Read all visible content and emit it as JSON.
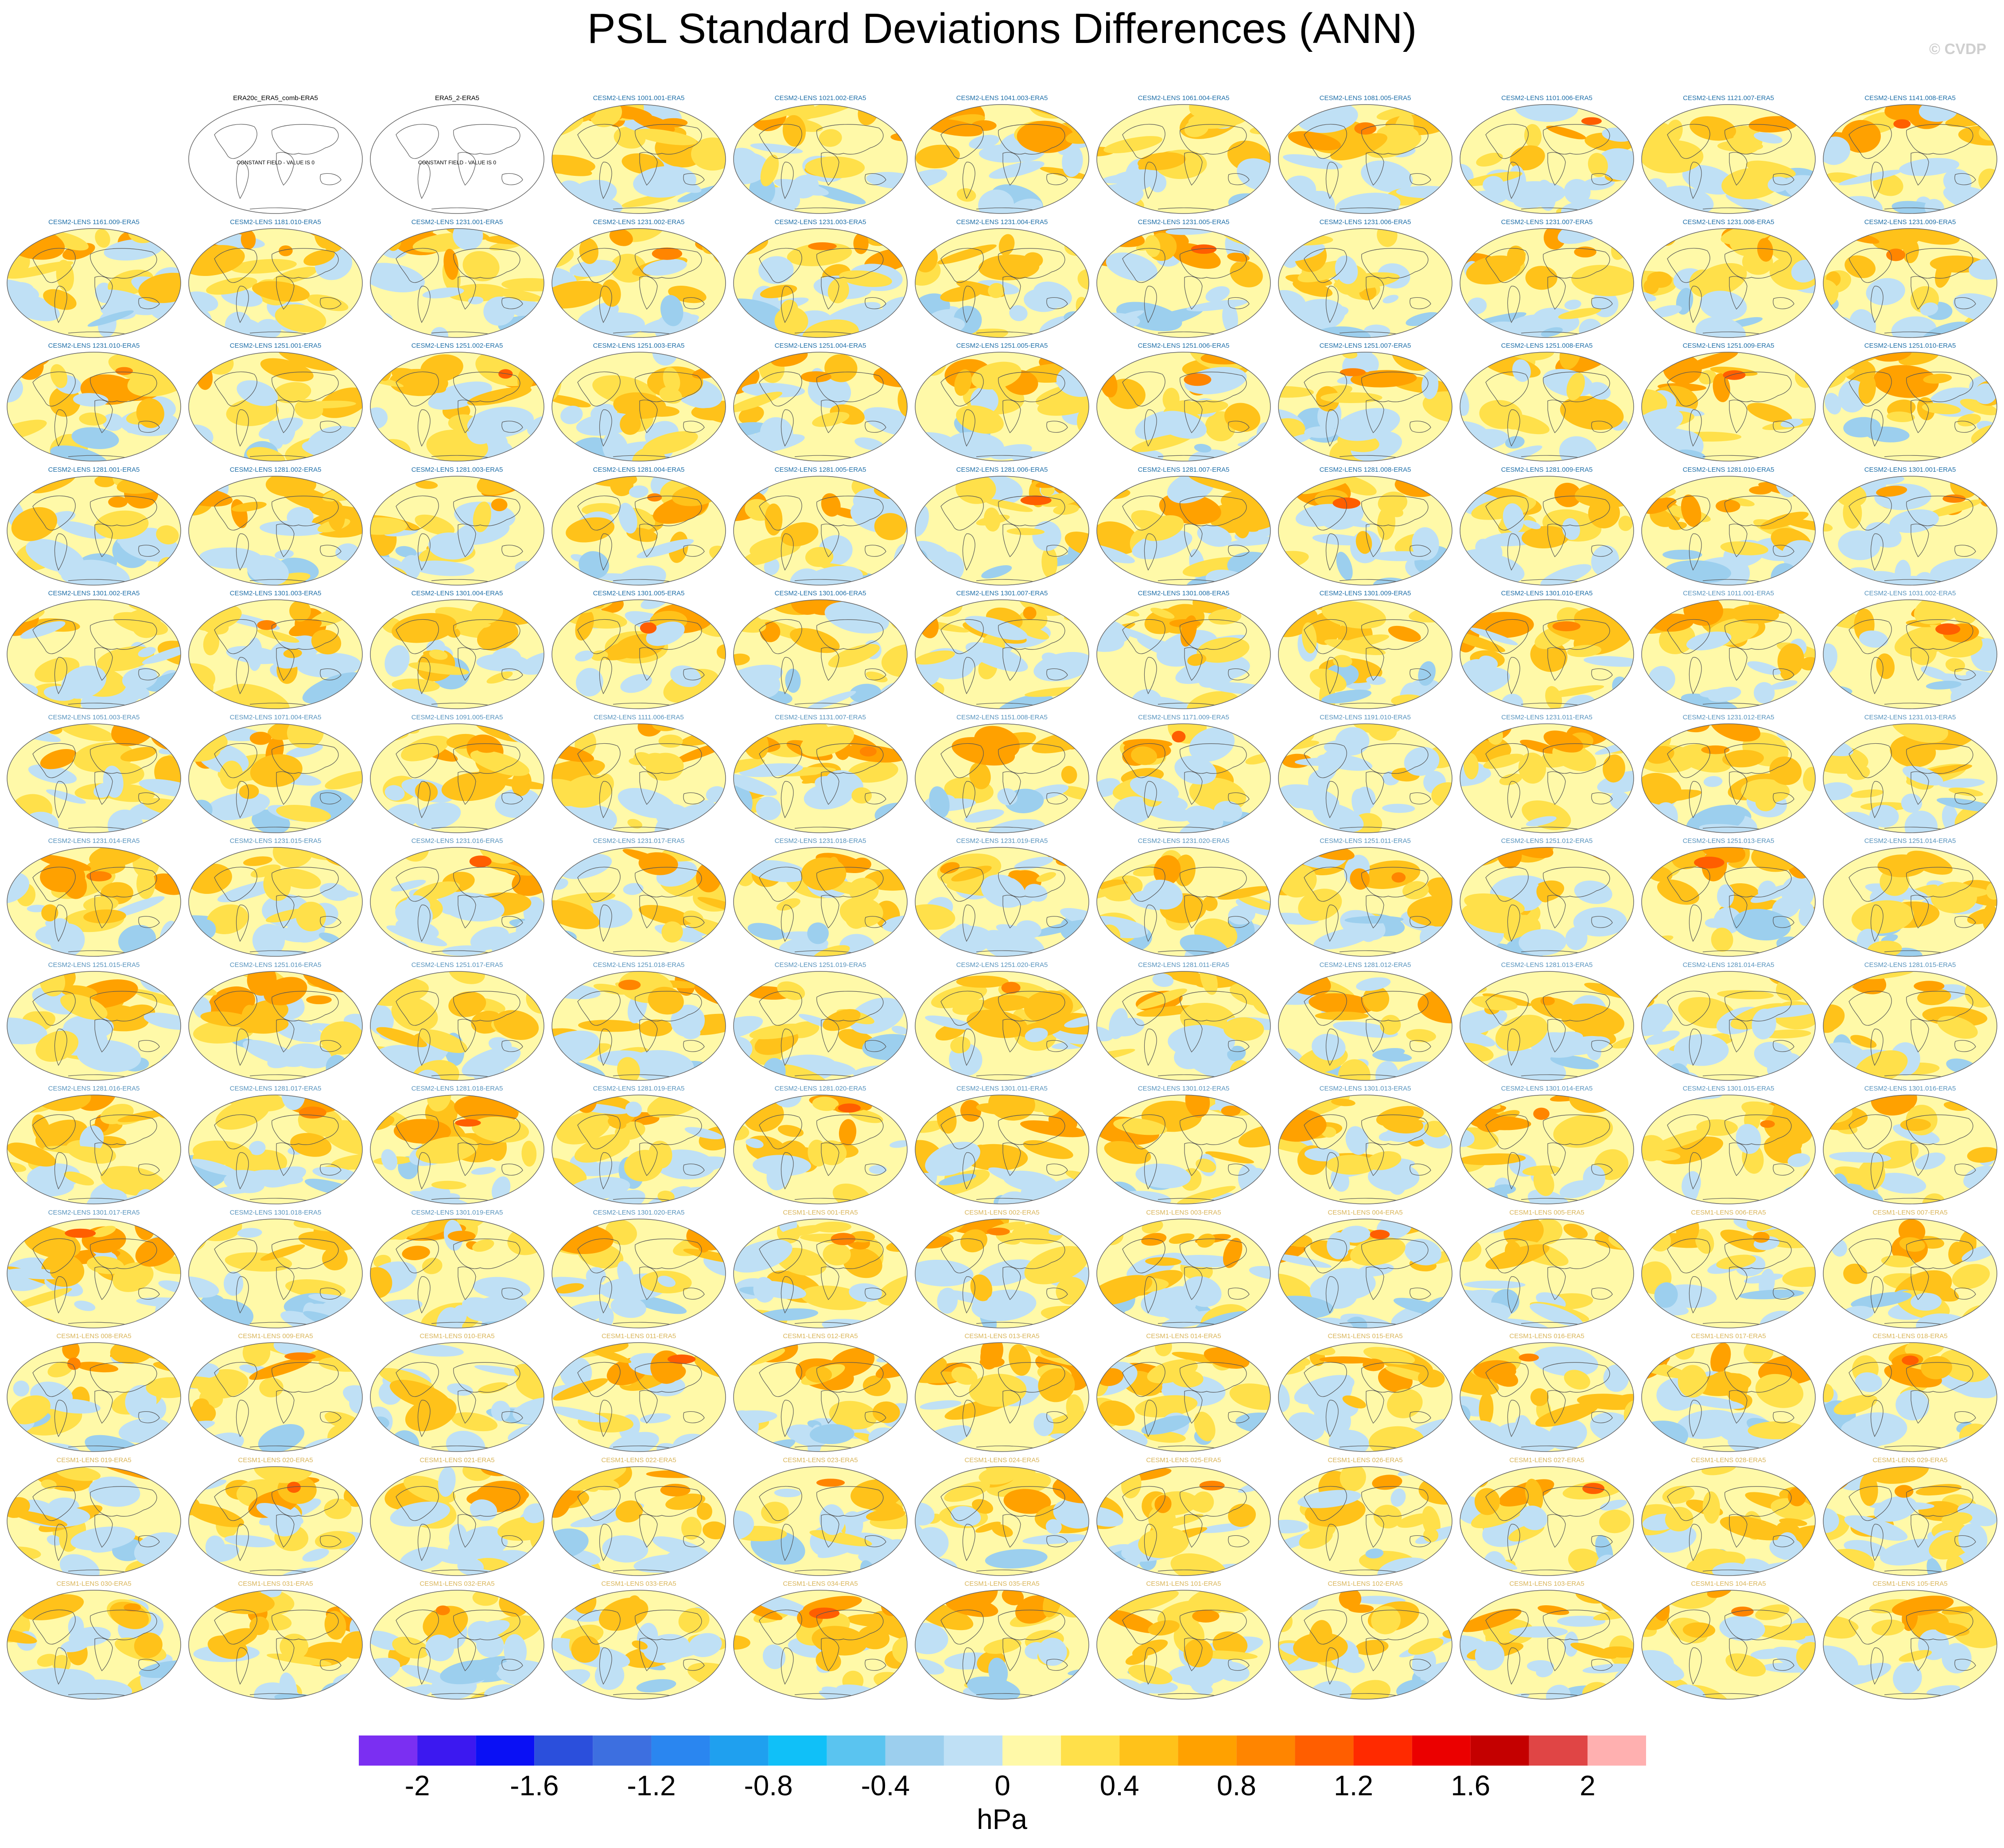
{
  "title": "PSL Standard Deviations Differences (ANN)",
  "credit": "© CVDP",
  "chart_data": {
    "type": "heatmap",
    "title": "PSL Standard Deviations Differences (ANN)",
    "grid": {
      "rows": 13,
      "cols": 11
    },
    "panel_title_colors": {
      "obs": "#000000",
      "cesm2": "#1f6fa8",
      "cesm1": "#d9b55a"
    },
    "panels": [
      {
        "title": "",
        "kind": "empty"
      },
      {
        "title": "ERA20c_ERA5_comb-ERA5",
        "kind": "obs",
        "note": "CONSTANT FIELD - VALUE IS 0"
      },
      {
        "title": "ERA5_2-ERA5",
        "kind": "obs",
        "note": "CONSTANT FIELD - VALUE IS 0"
      },
      {
        "title": "CESM2-LENS 1001.001-ERA5",
        "kind": "cesm2"
      },
      {
        "title": "CESM2-LENS 1021.002-ERA5",
        "kind": "cesm2"
      },
      {
        "title": "CESM2-LENS 1041.003-ERA5",
        "kind": "cesm2"
      },
      {
        "title": "CESM2-LENS 1061.004-ERA5",
        "kind": "cesm2"
      },
      {
        "title": "CESM2-LENS 1081.005-ERA5",
        "kind": "cesm2"
      },
      {
        "title": "CESM2-LENS 1101.006-ERA5",
        "kind": "cesm2"
      },
      {
        "title": "CESM2-LENS 1121.007-ERA5",
        "kind": "cesm2"
      },
      {
        "title": "CESM2-LENS 1141.008-ERA5",
        "kind": "cesm2"
      },
      {
        "title": "CESM2-LENS 1161.009-ERA5",
        "kind": "cesm2"
      },
      {
        "title": "CESM2-LENS 1181.010-ERA5",
        "kind": "cesm2"
      },
      {
        "title": "CESM2-LENS 1231.001-ERA5",
        "kind": "cesm2"
      },
      {
        "title": "CESM2-LENS 1231.002-ERA5",
        "kind": "cesm2"
      },
      {
        "title": "CESM2-LENS 1231.003-ERA5",
        "kind": "cesm2"
      },
      {
        "title": "CESM2-LENS 1231.004-ERA5",
        "kind": "cesm2"
      },
      {
        "title": "CESM2-LENS 1231.005-ERA5",
        "kind": "cesm2"
      },
      {
        "title": "CESM2-LENS 1231.006-ERA5",
        "kind": "cesm2"
      },
      {
        "title": "CESM2-LENS 1231.007-ERA5",
        "kind": "cesm2"
      },
      {
        "title": "CESM2-LENS 1231.008-ERA5",
        "kind": "cesm2"
      },
      {
        "title": "CESM2-LENS 1231.009-ERA5",
        "kind": "cesm2"
      },
      {
        "title": "CESM2-LENS 1231.010-ERA5",
        "kind": "cesm2"
      },
      {
        "title": "CESM2-LENS 1251.001-ERA5",
        "kind": "cesm2"
      },
      {
        "title": "CESM2-LENS 1251.002-ERA5",
        "kind": "cesm2"
      },
      {
        "title": "CESM2-LENS 1251.003-ERA5",
        "kind": "cesm2"
      },
      {
        "title": "CESM2-LENS 1251.004-ERA5",
        "kind": "cesm2"
      },
      {
        "title": "CESM2-LENS 1251.005-ERA5",
        "kind": "cesm2"
      },
      {
        "title": "CESM2-LENS 1251.006-ERA5",
        "kind": "cesm2"
      },
      {
        "title": "CESM2-LENS 1251.007-ERA5",
        "kind": "cesm2"
      },
      {
        "title": "CESM2-LENS 1251.008-ERA5",
        "kind": "cesm2"
      },
      {
        "title": "CESM2-LENS 1251.009-ERA5",
        "kind": "cesm2"
      },
      {
        "title": "CESM2-LENS 1251.010-ERA5",
        "kind": "cesm2"
      },
      {
        "title": "CESM2-LENS 1281.001-ERA5",
        "kind": "cesm2"
      },
      {
        "title": "CESM2-LENS 1281.002-ERA5",
        "kind": "cesm2"
      },
      {
        "title": "CESM2-LENS 1281.003-ERA5",
        "kind": "cesm2"
      },
      {
        "title": "CESM2-LENS 1281.004-ERA5",
        "kind": "cesm2"
      },
      {
        "title": "CESM2-LENS 1281.005-ERA5",
        "kind": "cesm2"
      },
      {
        "title": "CESM2-LENS 1281.006-ERA5",
        "kind": "cesm2"
      },
      {
        "title": "CESM2-LENS 1281.007-ERA5",
        "kind": "cesm2"
      },
      {
        "title": "CESM2-LENS 1281.008-ERA5",
        "kind": "cesm2"
      },
      {
        "title": "CESM2-LENS 1281.009-ERA5",
        "kind": "cesm2"
      },
      {
        "title": "CESM2-LENS 1281.010-ERA5",
        "kind": "cesm2"
      },
      {
        "title": "CESM2-LENS 1301.001-ERA5",
        "kind": "cesm2"
      },
      {
        "title": "CESM2-LENS 1301.002-ERA5",
        "kind": "cesm2"
      },
      {
        "title": "CESM2-LENS 1301.003-ERA5",
        "kind": "cesm2"
      },
      {
        "title": "CESM2-LENS 1301.004-ERA5",
        "kind": "cesm2"
      },
      {
        "title": "CESM2-LENS 1301.005-ERA5",
        "kind": "cesm2"
      },
      {
        "title": "CESM2-LENS 1301.006-ERA5",
        "kind": "cesm2"
      },
      {
        "title": "CESM2-LENS 1301.007-ERA5",
        "kind": "cesm2"
      },
      {
        "title": "CESM2-LENS 1301.008-ERA5",
        "kind": "cesm2"
      },
      {
        "title": "CESM2-LENS 1301.009-ERA5",
        "kind": "cesm2"
      },
      {
        "title": "CESM2-LENS 1301.010-ERA5",
        "kind": "cesm2"
      },
      {
        "title": "CESM2-LENS 1011.001-ERA5",
        "kind": "cesm2-alt"
      },
      {
        "title": "CESM2-LENS 1031.002-ERA5",
        "kind": "cesm2-alt"
      },
      {
        "title": "CESM2-LENS 1051.003-ERA5",
        "kind": "cesm2-alt"
      },
      {
        "title": "CESM2-LENS 1071.004-ERA5",
        "kind": "cesm2-alt"
      },
      {
        "title": "CESM2-LENS 1091.005-ERA5",
        "kind": "cesm2-alt"
      },
      {
        "title": "CESM2-LENS 1111.006-ERA5",
        "kind": "cesm2-alt"
      },
      {
        "title": "CESM2-LENS 1131.007-ERA5",
        "kind": "cesm2-alt"
      },
      {
        "title": "CESM2-LENS 1151.008-ERA5",
        "kind": "cesm2-alt"
      },
      {
        "title": "CESM2-LENS 1171.009-ERA5",
        "kind": "cesm2-alt"
      },
      {
        "title": "CESM2-LENS 1191.010-ERA5",
        "kind": "cesm2-alt"
      },
      {
        "title": "CESM2-LENS 1231.011-ERA5",
        "kind": "cesm2-alt"
      },
      {
        "title": "CESM2-LENS 1231.012-ERA5",
        "kind": "cesm2-alt"
      },
      {
        "title": "CESM2-LENS 1231.013-ERA5",
        "kind": "cesm2-alt"
      },
      {
        "title": "CESM2-LENS 1231.014-ERA5",
        "kind": "cesm2-alt"
      },
      {
        "title": "CESM2-LENS 1231.015-ERA5",
        "kind": "cesm2-alt"
      },
      {
        "title": "CESM2-LENS 1231.016-ERA5",
        "kind": "cesm2-alt"
      },
      {
        "title": "CESM2-LENS 1231.017-ERA5",
        "kind": "cesm2-alt"
      },
      {
        "title": "CESM2-LENS 1231.018-ERA5",
        "kind": "cesm2-alt"
      },
      {
        "title": "CESM2-LENS 1231.019-ERA5",
        "kind": "cesm2-alt"
      },
      {
        "title": "CESM2-LENS 1231.020-ERA5",
        "kind": "cesm2-alt"
      },
      {
        "title": "CESM2-LENS 1251.011-ERA5",
        "kind": "cesm2-alt"
      },
      {
        "title": "CESM2-LENS 1251.012-ERA5",
        "kind": "cesm2-alt"
      },
      {
        "title": "CESM2-LENS 1251.013-ERA5",
        "kind": "cesm2-alt"
      },
      {
        "title": "CESM2-LENS 1251.014-ERA5",
        "kind": "cesm2-alt"
      },
      {
        "title": "CESM2-LENS 1251.015-ERA5",
        "kind": "cesm2-alt"
      },
      {
        "title": "CESM2-LENS 1251.016-ERA5",
        "kind": "cesm2-alt"
      },
      {
        "title": "CESM2-LENS 1251.017-ERA5",
        "kind": "cesm2-alt"
      },
      {
        "title": "CESM2-LENS 1251.018-ERA5",
        "kind": "cesm2-alt"
      },
      {
        "title": "CESM2-LENS 1251.019-ERA5",
        "kind": "cesm2-alt"
      },
      {
        "title": "CESM2-LENS 1251.020-ERA5",
        "kind": "cesm2-alt"
      },
      {
        "title": "CESM2-LENS 1281.011-ERA5",
        "kind": "cesm2-alt"
      },
      {
        "title": "CESM2-LENS 1281.012-ERA5",
        "kind": "cesm2-alt"
      },
      {
        "title": "CESM2-LENS 1281.013-ERA5",
        "kind": "cesm2-alt"
      },
      {
        "title": "CESM2-LENS 1281.014-ERA5",
        "kind": "cesm2-alt"
      },
      {
        "title": "CESM2-LENS 1281.015-ERA5",
        "kind": "cesm2-alt"
      },
      {
        "title": "CESM2-LENS 1281.016-ERA5",
        "kind": "cesm2-alt"
      },
      {
        "title": "CESM2-LENS 1281.017-ERA5",
        "kind": "cesm2-alt"
      },
      {
        "title": "CESM2-LENS 1281.018-ERA5",
        "kind": "cesm2-alt"
      },
      {
        "title": "CESM2-LENS 1281.019-ERA5",
        "kind": "cesm2-alt"
      },
      {
        "title": "CESM2-LENS 1281.020-ERA5",
        "kind": "cesm2-alt"
      },
      {
        "title": "CESM2-LENS 1301.011-ERA5",
        "kind": "cesm2-alt"
      },
      {
        "title": "CESM2-LENS 1301.012-ERA5",
        "kind": "cesm2-alt"
      },
      {
        "title": "CESM2-LENS 1301.013-ERA5",
        "kind": "cesm2-alt"
      },
      {
        "title": "CESM2-LENS 1301.014-ERA5",
        "kind": "cesm2-alt"
      },
      {
        "title": "CESM2-LENS 1301.015-ERA5",
        "kind": "cesm2-alt"
      },
      {
        "title": "CESM2-LENS 1301.016-ERA5",
        "kind": "cesm2-alt"
      },
      {
        "title": "CESM2-LENS 1301.017-ERA5",
        "kind": "cesm2-alt"
      },
      {
        "title": "CESM2-LENS 1301.018-ERA5",
        "kind": "cesm2-alt"
      },
      {
        "title": "CESM2-LENS 1301.019-ERA5",
        "kind": "cesm2-alt"
      },
      {
        "title": "CESM2-LENS 1301.020-ERA5",
        "kind": "cesm2-alt"
      },
      {
        "title": "CESM1-LENS 001-ERA5",
        "kind": "cesm1"
      },
      {
        "title": "CESM1-LENS 002-ERA5",
        "kind": "cesm1"
      },
      {
        "title": "CESM1-LENS 003-ERA5",
        "kind": "cesm1"
      },
      {
        "title": "CESM1-LENS 004-ERA5",
        "kind": "cesm1"
      },
      {
        "title": "CESM1-LENS 005-ERA5",
        "kind": "cesm1"
      },
      {
        "title": "CESM1-LENS 006-ERA5",
        "kind": "cesm1"
      },
      {
        "title": "CESM1-LENS 007-ERA5",
        "kind": "cesm1"
      },
      {
        "title": "CESM1-LENS 008-ERA5",
        "kind": "cesm1"
      },
      {
        "title": "CESM1-LENS 009-ERA5",
        "kind": "cesm1"
      },
      {
        "title": "CESM1-LENS 010-ERA5",
        "kind": "cesm1"
      },
      {
        "title": "CESM1-LENS 011-ERA5",
        "kind": "cesm1"
      },
      {
        "title": "CESM1-LENS 012-ERA5",
        "kind": "cesm1"
      },
      {
        "title": "CESM1-LENS 013-ERA5",
        "kind": "cesm1"
      },
      {
        "title": "CESM1-LENS 014-ERA5",
        "kind": "cesm1"
      },
      {
        "title": "CESM1-LENS 015-ERA5",
        "kind": "cesm1"
      },
      {
        "title": "CESM1-LENS 016-ERA5",
        "kind": "cesm1"
      },
      {
        "title": "CESM1-LENS 017-ERA5",
        "kind": "cesm1"
      },
      {
        "title": "CESM1-LENS 018-ERA5",
        "kind": "cesm1"
      },
      {
        "title": "CESM1-LENS 019-ERA5",
        "kind": "cesm1"
      },
      {
        "title": "CESM1-LENS 020-ERA5",
        "kind": "cesm1"
      },
      {
        "title": "CESM1-LENS 021-ERA5",
        "kind": "cesm1"
      },
      {
        "title": "CESM1-LENS 022-ERA5",
        "kind": "cesm1"
      },
      {
        "title": "CESM1-LENS 023-ERA5",
        "kind": "cesm1"
      },
      {
        "title": "CESM1-LENS 024-ERA5",
        "kind": "cesm1"
      },
      {
        "title": "CESM1-LENS 025-ERA5",
        "kind": "cesm1"
      },
      {
        "title": "CESM1-LENS 026-ERA5",
        "kind": "cesm1"
      },
      {
        "title": "CESM1-LENS 027-ERA5",
        "kind": "cesm1"
      },
      {
        "title": "CESM1-LENS 028-ERA5",
        "kind": "cesm1"
      },
      {
        "title": "CESM1-LENS 029-ERA5",
        "kind": "cesm1"
      },
      {
        "title": "CESM1-LENS 030-ERA5",
        "kind": "cesm1"
      },
      {
        "title": "CESM1-LENS 031-ERA5",
        "kind": "cesm1"
      },
      {
        "title": "CESM1-LENS 032-ERA5",
        "kind": "cesm1"
      },
      {
        "title": "CESM1-LENS 033-ERA5",
        "kind": "cesm1"
      },
      {
        "title": "CESM1-LENS 034-ERA5",
        "kind": "cesm1"
      },
      {
        "title": "CESM1-LENS 035-ERA5",
        "kind": "cesm1"
      },
      {
        "title": "CESM1-LENS 101-ERA5",
        "kind": "cesm1"
      },
      {
        "title": "CESM1-LENS 102-ERA5",
        "kind": "cesm1"
      },
      {
        "title": "CESM1-LENS 103-ERA5",
        "kind": "cesm1"
      },
      {
        "title": "CESM1-LENS 104-ERA5",
        "kind": "cesm1"
      },
      {
        "title": "CESM1-LENS 105-ERA5",
        "kind": "cesm1"
      }
    ],
    "colorbar": {
      "unit": "hPa",
      "boundaries": [
        -2.2,
        -2.0,
        -1.8,
        -1.6,
        -1.4,
        -1.2,
        -1.0,
        -0.8,
        -0.6,
        -0.4,
        -0.2,
        0.0,
        0.2,
        0.4,
        0.6,
        0.8,
        1.0,
        1.2,
        1.4,
        1.6,
        1.8,
        2.0,
        2.2
      ],
      "colors": [
        "#7b2ff2",
        "#3c18f0",
        "#0a10f5",
        "#2b4fdc",
        "#3d6fe0",
        "#2a86f0",
        "#1fa0ef",
        "#10c0f8",
        "#5ac4f0",
        "#9ccfee",
        "#bfe0f5",
        "#fff9a8",
        "#ffe04a",
        "#ffc21a",
        "#ffa100",
        "#ff8500",
        "#ff5e00",
        "#ff2a00",
        "#eb0000",
        "#c40000",
        "#e04545",
        "#ffb0b0"
      ],
      "tick_labels": [
        "-2",
        "-1.6",
        "-1.2",
        "-0.8",
        "-0.4",
        "0",
        "0.4",
        "0.8",
        "1.2",
        "1.6",
        "2"
      ],
      "tick_values": [
        -2.0,
        -1.6,
        -1.2,
        -0.8,
        -0.4,
        0.0,
        0.4,
        0.8,
        1.2,
        1.6,
        2.0
      ]
    }
  }
}
